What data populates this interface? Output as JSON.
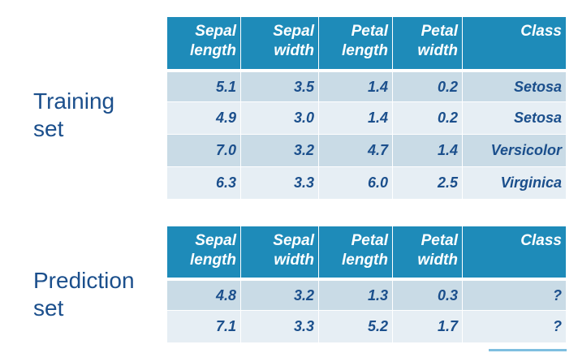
{
  "training": {
    "label_lines": [
      "Training",
      "set"
    ],
    "headers": [
      [
        "Sepal",
        "length"
      ],
      [
        "Sepal",
        "width"
      ],
      [
        "Petal",
        "length"
      ],
      [
        "Petal",
        "width"
      ],
      [
        "Class"
      ]
    ],
    "rows": [
      [
        "5.1",
        "3.5",
        "1.4",
        "0.2",
        "Setosa"
      ],
      [
        "4.9",
        "3.0",
        "1.4",
        "0.2",
        "Setosa"
      ],
      [
        "7.0",
        "3.2",
        "4.7",
        "1.4",
        "Versicolor"
      ],
      [
        "6.3",
        "3.3",
        "6.0",
        "2.5",
        "Virginica"
      ]
    ]
  },
  "prediction": {
    "label_lines": [
      "Prediction",
      "set"
    ],
    "headers": [
      [
        "Sepal",
        "length"
      ],
      [
        "Sepal",
        "width"
      ],
      [
        "Petal",
        "length"
      ],
      [
        "Petal",
        "width"
      ],
      [
        "Class"
      ]
    ],
    "rows": [
      [
        "4.8",
        "3.2",
        "1.3",
        "0.3",
        "?"
      ],
      [
        "7.1",
        "3.3",
        "5.2",
        "1.7",
        "?"
      ]
    ]
  },
  "colors": {
    "header_bg": "#1e8bb9",
    "row_dark": "#c9dbe6",
    "row_light": "#e6eef4",
    "text_blue": "#1b4f8c",
    "accent_bar": "#7fbfe0"
  }
}
